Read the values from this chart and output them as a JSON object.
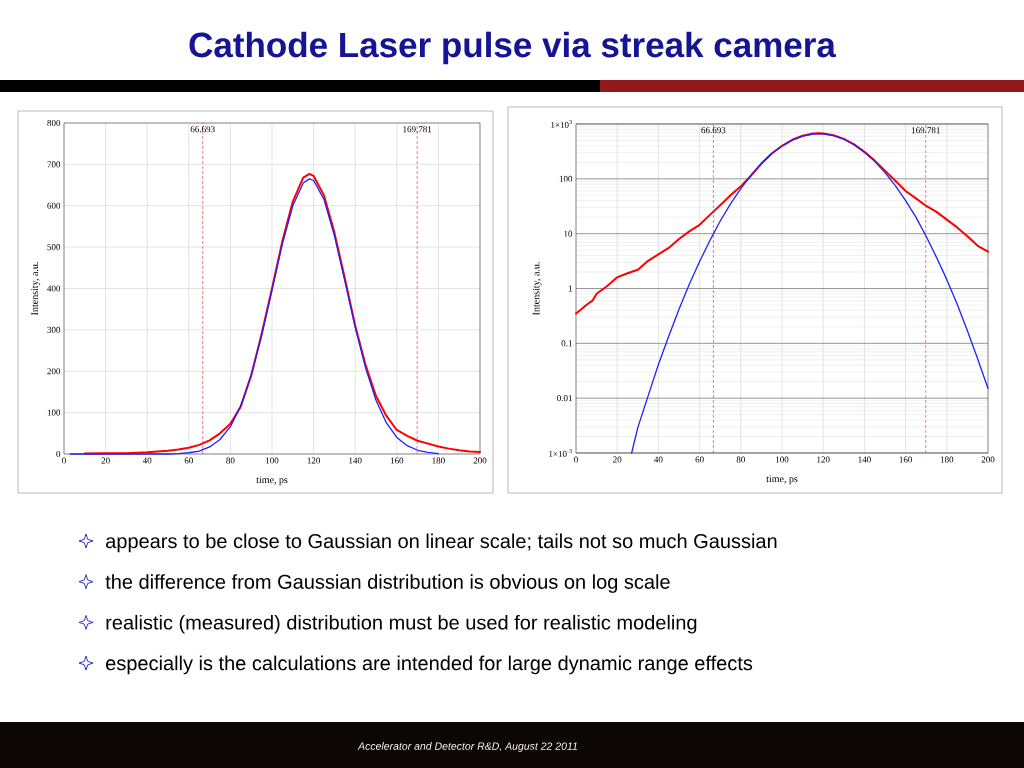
{
  "chart_data": [
    {
      "type": "line",
      "title": "Cathode Laser pulse via streak camera",
      "xlabel": "time, ps",
      "ylabel": "Intensity, a.u.",
      "xlim": [
        0,
        200
      ],
      "ylim": [
        0,
        800
      ],
      "xticks": [
        0,
        20,
        40,
        60,
        80,
        100,
        120,
        140,
        160,
        180,
        200
      ],
      "yticks": [
        0,
        100,
        200,
        300,
        400,
        500,
        600,
        700,
        800
      ],
      "grid": true,
      "series": [
        {
          "color": "#ff0000",
          "x": [
            10,
            20,
            30,
            40,
            50,
            55,
            60,
            65,
            70,
            75,
            80,
            85,
            90,
            95,
            100,
            105,
            110,
            115,
            118,
            120,
            125,
            130,
            135,
            140,
            145,
            150,
            155,
            160,
            165,
            170,
            175,
            180,
            185,
            190,
            195,
            200
          ],
          "values": [
            1,
            2,
            2,
            4,
            8,
            11,
            15,
            22,
            33,
            50,
            73,
            115,
            190,
            290,
            400,
            515,
            610,
            668,
            677,
            672,
            625,
            535,
            425,
            310,
            215,
            140,
            92,
            58,
            44,
            32,
            25,
            18,
            13,
            9,
            6,
            5
          ]
        },
        {
          "color": "#2020ff",
          "x": [
            3,
            50,
            55,
            60,
            65,
            70,
            75,
            80,
            85,
            90,
            95,
            100,
            105,
            110,
            115,
            118,
            120,
            125,
            130,
            135,
            140,
            145,
            150,
            155,
            160,
            165,
            170,
            175,
            180
          ],
          "values": [
            0,
            0,
            1,
            3,
            7,
            17,
            35,
            66,
            117,
            190,
            286,
            397,
            508,
            600,
            655,
            665,
            661,
            615,
            528,
            419,
            307,
            208,
            130,
            75,
            40,
            20,
            9,
            4,
            1
          ]
        }
      ],
      "ref_lines": [
        {
          "axis": "x",
          "value": 66.693,
          "label": "66.693",
          "color": "#e02828",
          "line_style": "dashed"
        },
        {
          "axis": "x",
          "value": 169.781,
          "label": "169.781",
          "color": "#e02828",
          "line_style": "dashed"
        }
      ],
      "annotations": [
        "appears to be close to Gaussian on linear scale; tails not so much Gaussian",
        "the difference from Gaussian distribution is obvious on log scale",
        "realistic (measured) distribution must be used for realistic modeling",
        "especially is the calculations are intended for large dynamic range effects",
        "Accelerator and Detector R&D, August 22 2011"
      ]
    },
    {
      "type": "line",
      "xlabel": "time, ps",
      "ylabel": "Intensity, a.u.",
      "log": true,
      "xlim": [
        0,
        200
      ],
      "ylim": [
        0.001,
        1000
      ],
      "xticks": [
        0,
        20,
        40,
        60,
        80,
        100,
        120,
        140,
        160,
        180,
        200
      ],
      "yticks": [
        {
          "value": 0.001,
          "label": "1×10$^{-3}$"
        },
        0.01,
        0.1,
        1,
        10,
        100,
        {
          "value": 1000,
          "label": "1×10$^{3}$"
        }
      ],
      "grid": true,
      "series": [
        {
          "color": "#ff0000",
          "x": [
            0,
            2,
            5,
            8,
            10,
            15,
            20,
            25,
            30,
            35,
            40,
            45,
            50,
            55,
            60,
            65,
            70,
            75,
            80,
            85,
            90,
            95,
            100,
            105,
            110,
            115,
            118,
            120,
            125,
            130,
            135,
            140,
            145,
            150,
            155,
            160,
            165,
            170,
            175,
            180,
            185,
            190,
            195,
            200
          ],
          "values": [
            0.35,
            0.4,
            0.5,
            0.6,
            0.8,
            1.1,
            1.6,
            1.9,
            2.2,
            3.2,
            4.2,
            5.5,
            8,
            11,
            14.5,
            22,
            33,
            50,
            73,
            115,
            190,
            290,
            400,
            515,
            610,
            668,
            677,
            672,
            625,
            535,
            425,
            310,
            215,
            140,
            92,
            60,
            44,
            32,
            25,
            18,
            13,
            9,
            6,
            4.7
          ]
        },
        {
          "color": "#2020ff",
          "x": [
            27,
            30,
            35,
            40,
            45,
            50,
            55,
            60,
            65,
            70,
            75,
            80,
            85,
            90,
            95,
            100,
            105,
            110,
            115,
            118,
            120,
            125,
            130,
            135,
            140,
            145,
            150,
            155,
            160,
            165,
            170,
            175,
            180,
            185,
            190,
            195,
            200
          ],
          "values": [
            0.001,
            0.0029,
            0.011,
            0.041,
            0.135,
            0.42,
            1.2,
            3.1,
            7.5,
            17,
            35,
            66,
            117,
            190,
            286,
            397,
            508,
            600,
            655,
            665,
            661,
            615,
            528,
            419,
            307,
            208,
            130,
            75,
            40,
            20,
            8.9,
            3.7,
            1.45,
            0.52,
            0.17,
            0.052,
            0.015
          ]
        }
      ],
      "ref_lines": [
        {
          "axis": "x",
          "value": 66.693,
          "label": "66.693",
          "color": "#e02828",
          "line_style": "dashed"
        },
        {
          "axis": "x",
          "value": 169.781,
          "label": "169.781",
          "color": "#e02828",
          "line_style": "dashed"
        }
      ]
    }
  ]
}
